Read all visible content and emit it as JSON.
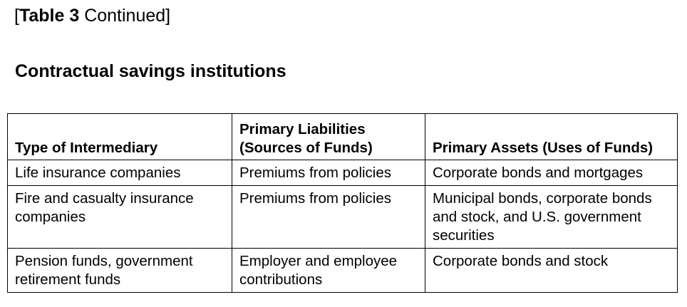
{
  "caption": {
    "open_bracket": "[",
    "label": "Table 3",
    "rest": " Continued]"
  },
  "section_title": "Contractual savings institutions",
  "table": {
    "headers": [
      "Type of Intermediary",
      "Primary Liabilities (Sources of Funds)",
      "Primary Assets (Uses of Funds)"
    ],
    "rows": [
      [
        "Life insurance companies",
        "Premiums from policies",
        "Corporate bonds and mortgages"
      ],
      [
        "Fire and casualty insurance companies",
        "Premiums from policies",
        "Municipal bonds, corporate bonds and stock, and U.S. government securities"
      ],
      [
        "Pension funds, government retirement funds",
        "Employer and employee contributions",
        "Corporate bonds and stock"
      ]
    ]
  }
}
